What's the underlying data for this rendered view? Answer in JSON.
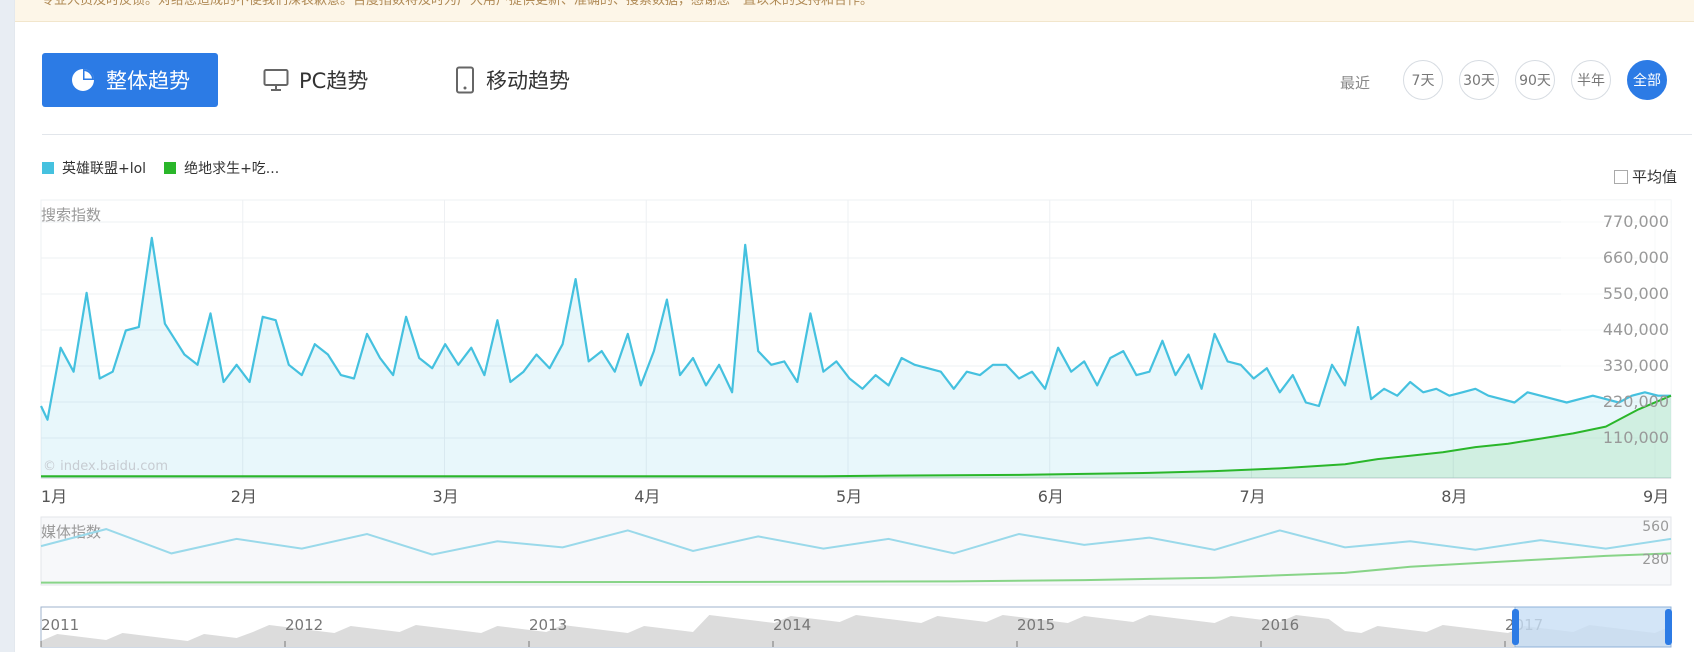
{
  "notice_text": "专业人员及时反馈。对给您造成的不便我们深表歉意。百度指数将及时为广大用户提供更新、准确的、搜索数据，感谢您一直以来的支持和合作。",
  "tabs": {
    "overall": "整体趋势",
    "pc": "PC趋势",
    "mobile": "移动趋势"
  },
  "range": {
    "label": "最近",
    "options": [
      "7天",
      "30天",
      "90天",
      "半年",
      "全部"
    ],
    "selected": "全部"
  },
  "legend": [
    {
      "name": "英雄联盟+lol",
      "color": "#45c1df"
    },
    {
      "name": "绝地求生+吃...",
      "color": "#2ab62a"
    }
  ],
  "average_label": "平均值",
  "colors": {
    "accent": "#2c7be5",
    "series1": "#45c1df",
    "series2": "#2ab62a"
  },
  "chart_data": [
    {
      "type": "area",
      "title": "搜索指数",
      "watermark": "© index.baidu.com",
      "x_ticks": [
        "1月",
        "2月",
        "3月",
        "4月",
        "5月",
        "6月",
        "7月",
        "8月",
        "9月"
      ],
      "y_ticks": [
        "770,000",
        "660,000",
        "550,000",
        "440,000",
        "330,000",
        "220,000",
        "110,000"
      ],
      "ylim": [
        0,
        770000
      ],
      "series": [
        {
          "name": "英雄联盟+lol",
          "x": [
            0,
            1,
            3,
            5,
            7,
            9,
            11,
            13,
            15,
            17,
            19,
            21,
            22,
            24,
            26,
            28,
            30,
            32,
            34,
            36,
            38,
            40,
            42,
            44,
            46,
            48,
            50,
            52,
            54,
            56,
            58,
            60,
            62,
            64,
            66,
            68,
            70,
            72,
            74,
            76,
            78,
            80,
            82,
            84,
            86,
            88,
            90,
            92,
            94,
            96,
            98,
            100,
            102,
            104,
            106,
            108,
            110,
            112,
            114,
            116,
            118,
            120,
            122,
            124,
            126,
            128,
            130,
            132,
            134,
            136,
            138,
            140,
            142,
            144,
            146,
            148,
            150,
            152,
            154,
            156,
            158,
            160,
            162,
            164,
            166,
            168,
            170,
            172,
            174,
            176,
            178,
            180,
            182,
            184,
            186,
            188,
            190,
            192,
            194,
            196,
            198,
            200,
            202,
            204,
            206,
            208,
            210,
            212,
            214,
            216,
            218,
            220,
            222,
            224,
            226,
            228,
            230,
            232,
            234,
            236,
            238,
            240,
            242,
            244,
            246,
            248,
            250
          ],
          "values": [
            210000,
            170000,
            380000,
            310000,
            540000,
            290000,
            310000,
            430000,
            440000,
            700000,
            450000,
            390000,
            360000,
            330000,
            480000,
            280000,
            330000,
            280000,
            470000,
            460000,
            330000,
            300000,
            390000,
            360000,
            300000,
            290000,
            420000,
            350000,
            300000,
            470000,
            350000,
            320000,
            390000,
            330000,
            380000,
            300000,
            460000,
            280000,
            310000,
            360000,
            320000,
            390000,
            580000,
            340000,
            370000,
            310000,
            420000,
            270000,
            370000,
            520000,
            300000,
            350000,
            270000,
            330000,
            250000,
            680000,
            370000,
            330000,
            340000,
            280000,
            480000,
            310000,
            340000,
            290000,
            260000,
            300000,
            270000,
            350000,
            330000,
            320000,
            310000,
            260000,
            310000,
            300000,
            330000,
            330000,
            290000,
            310000,
            260000,
            380000,
            310000,
            340000,
            270000,
            350000,
            370000,
            300000,
            310000,
            400000,
            300000,
            360000,
            260000,
            420000,
            340000,
            330000,
            290000,
            320000,
            250000,
            300000,
            220000,
            210000,
            330000,
            270000,
            440000,
            230000,
            260000,
            240000,
            280000,
            250000,
            260000,
            240000,
            250000,
            260000,
            240000,
            230000,
            220000,
            250000,
            240000,
            230000,
            220000,
            230000,
            240000,
            230000,
            220000,
            240000,
            250000,
            240000,
            240000
          ]
        },
        {
          "name": "绝地求生+吃...",
          "x": [
            0,
            120,
            130,
            140,
            150,
            160,
            170,
            180,
            190,
            200,
            205,
            210,
            215,
            220,
            225,
            230,
            235,
            240,
            245,
            250
          ],
          "values": [
            5000,
            5000,
            7000,
            8000,
            9000,
            12000,
            15000,
            20000,
            28000,
            40000,
            55000,
            65000,
            75000,
            90000,
            100000,
            115000,
            130000,
            150000,
            200000,
            240000
          ]
        }
      ]
    },
    {
      "type": "line",
      "title": "媒体指数",
      "y_ticks": [
        "560",
        "280"
      ],
      "ylim": [
        0,
        560
      ],
      "series": [
        {
          "name": "英雄联盟+lol",
          "x": [
            0,
            10,
            20,
            30,
            40,
            50,
            60,
            70,
            80,
            90,
            100,
            110,
            120,
            130,
            140,
            150,
            160,
            170,
            180,
            190,
            200,
            210,
            220,
            230,
            240,
            250
          ],
          "values": [
            320,
            460,
            260,
            380,
            300,
            420,
            250,
            360,
            310,
            450,
            280,
            400,
            300,
            380,
            260,
            420,
            330,
            390,
            290,
            450,
            310,
            360,
            290,
            370,
            300,
            380
          ]
        },
        {
          "name": "绝地求生+吃...",
          "x": [
            0,
            100,
            140,
            160,
            180,
            200,
            210,
            220,
            230,
            240,
            250
          ],
          "values": [
            20,
            25,
            30,
            40,
            60,
            100,
            150,
            180,
            210,
            240,
            260
          ]
        }
      ]
    }
  ],
  "navigator": {
    "years": [
      "2011",
      "2012",
      "2013",
      "2014",
      "2015",
      "2016",
      "2017"
    ]
  }
}
